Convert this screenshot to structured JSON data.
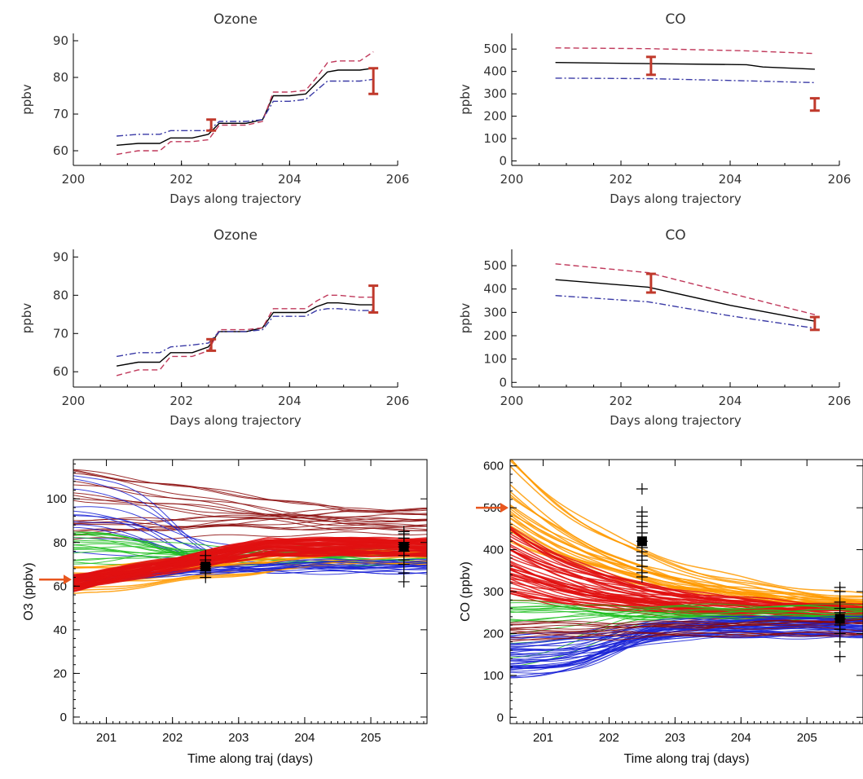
{
  "chart_data": [
    {
      "id": "p1",
      "type": "line",
      "title": "Ozone",
      "xlabel": "Days along trajectory",
      "ylabel": "ppbv",
      "xlim": [
        200,
        206
      ],
      "ylim": [
        56,
        92
      ],
      "xticks": [
        200,
        202,
        204,
        206
      ],
      "yticks": [
        60,
        70,
        80,
        90
      ],
      "series": [
        {
          "style": "solid",
          "color": "#000000",
          "x": [
            200.8,
            201.2,
            201.6,
            201.8,
            202.2,
            202.5,
            202.7,
            203.2,
            203.5,
            203.7,
            204.0,
            204.3,
            204.5,
            204.7,
            204.9,
            205.3,
            205.55
          ],
          "y": [
            61.5,
            62,
            62,
            63.5,
            63.5,
            64.5,
            67.5,
            67.5,
            68.5,
            75,
            75,
            75.5,
            78.5,
            81.5,
            82,
            82,
            82.5
          ]
        },
        {
          "style": "dashed",
          "color": "#c0395b",
          "x": [
            200.8,
            201.2,
            201.6,
            201.8,
            202.2,
            202.5,
            202.7,
            203.2,
            203.5,
            203.7,
            204.0,
            204.3,
            204.5,
            204.7,
            204.9,
            205.3,
            205.55
          ],
          "y": [
            59,
            60,
            60,
            62.5,
            62.5,
            63,
            67,
            67,
            68,
            76,
            76,
            76.5,
            80,
            84,
            84.5,
            84.5,
            87
          ]
        },
        {
          "style": "dashdot",
          "color": "#3a3aa6",
          "x": [
            200.8,
            201.2,
            201.6,
            201.8,
            202.2,
            202.5,
            202.7,
            203.2,
            203.5,
            203.7,
            204.0,
            204.3,
            204.5,
            204.7,
            204.9,
            205.3,
            205.55
          ],
          "y": [
            64,
            64.5,
            64.5,
            65.5,
            65.5,
            65.5,
            68,
            68,
            68.5,
            73.5,
            73.5,
            74,
            76.5,
            79,
            79,
            79,
            79.5
          ]
        }
      ],
      "errorbars": [
        {
          "x": 202.55,
          "y_low": 65.5,
          "y_high": 68.5
        },
        {
          "x": 205.55,
          "y_low": 75.5,
          "y_high": 82.5
        }
      ]
    },
    {
      "id": "p2",
      "type": "line",
      "title": "CO",
      "xlabel": "Days along trajectory",
      "ylabel": "ppbv",
      "xlim": [
        200,
        206
      ],
      "ylim": [
        -20,
        570
      ],
      "xticks": [
        200,
        202,
        204,
        206
      ],
      "yticks": [
        0,
        100,
        200,
        300,
        400,
        500
      ],
      "series": [
        {
          "style": "solid",
          "color": "#000000",
          "x": [
            200.8,
            202.5,
            204.3,
            204.6,
            205.55
          ],
          "y": [
            440,
            435,
            430,
            420,
            410
          ]
        },
        {
          "style": "dashed",
          "color": "#c0395b",
          "x": [
            200.8,
            202.5,
            204.3,
            205.55
          ],
          "y": [
            505,
            502,
            492,
            480
          ]
        },
        {
          "style": "dashdot",
          "color": "#3a3aa6",
          "x": [
            200.8,
            202.5,
            204.3,
            205.55
          ],
          "y": [
            370,
            368,
            358,
            350
          ]
        }
      ],
      "errorbars": [
        {
          "x": 202.55,
          "y_low": 385,
          "y_high": 465
        },
        {
          "x": 205.55,
          "y_low": 225,
          "y_high": 280
        }
      ]
    },
    {
      "id": "p3",
      "type": "line",
      "title": "Ozone",
      "xlabel": "Days along trajectory",
      "ylabel": "ppbv",
      "xlim": [
        200,
        206
      ],
      "ylim": [
        56,
        92
      ],
      "xticks": [
        200,
        202,
        204,
        206
      ],
      "yticks": [
        60,
        70,
        80,
        90
      ],
      "series": [
        {
          "style": "solid",
          "color": "#000000",
          "x": [
            200.8,
            201.2,
            201.6,
            201.8,
            202.2,
            202.5,
            202.7,
            203.2,
            203.5,
            203.7,
            204.0,
            204.3,
            204.5,
            204.7,
            204.9,
            205.3,
            205.55
          ],
          "y": [
            61.5,
            62.5,
            62.5,
            65,
            65,
            66.5,
            70.5,
            70.5,
            71.5,
            75.5,
            75.5,
            75.5,
            77,
            78,
            78,
            77.5,
            77.5
          ]
        },
        {
          "style": "dashed",
          "color": "#c0395b",
          "x": [
            200.8,
            201.2,
            201.6,
            201.8,
            202.2,
            202.5,
            202.7,
            203.2,
            203.5,
            203.7,
            204.0,
            204.3,
            204.5,
            204.7,
            204.9,
            205.3,
            205.55
          ],
          "y": [
            59,
            60.5,
            60.5,
            64,
            64,
            65.5,
            71,
            71,
            71.5,
            76.5,
            76.5,
            76.5,
            78.5,
            80,
            80,
            79.5,
            79.5
          ]
        },
        {
          "style": "dashdot",
          "color": "#3a3aa6",
          "x": [
            200.8,
            201.2,
            201.6,
            201.8,
            202.2,
            202.5,
            202.7,
            203.2,
            203.5,
            203.7,
            204.0,
            204.3,
            204.5,
            204.7,
            204.9,
            205.3,
            205.55
          ],
          "y": [
            64,
            65,
            65,
            66.5,
            67,
            67.5,
            70.5,
            70.5,
            71,
            74.5,
            74.5,
            74.5,
            76,
            76.5,
            76.5,
            76,
            76
          ]
        }
      ],
      "errorbars": [
        {
          "x": 202.55,
          "y_low": 65.5,
          "y_high": 68.5
        },
        {
          "x": 205.55,
          "y_low": 75.5,
          "y_high": 82.5
        }
      ]
    },
    {
      "id": "p4",
      "type": "line",
      "title": "CO",
      "xlabel": "Days along trajectory",
      "ylabel": "ppbv",
      "xlim": [
        200,
        206
      ],
      "ylim": [
        -20,
        570
      ],
      "xticks": [
        200,
        202,
        204,
        206
      ],
      "yticks": [
        0,
        100,
        200,
        300,
        400,
        500
      ],
      "series": [
        {
          "style": "solid",
          "color": "#000000",
          "x": [
            200.8,
            202.5,
            204.0,
            205.55
          ],
          "y": [
            440,
            408,
            330,
            262
          ]
        },
        {
          "style": "dashed",
          "color": "#c0395b",
          "x": [
            200.8,
            202.5,
            204.0,
            205.55
          ],
          "y": [
            508,
            470,
            382,
            290
          ]
        },
        {
          "style": "dashdot",
          "color": "#3a3aa6",
          "x": [
            200.8,
            202.5,
            204.0,
            205.55
          ],
          "y": [
            372,
            345,
            285,
            232
          ]
        }
      ],
      "errorbars": [
        {
          "x": 202.55,
          "y_low": 385,
          "y_high": 465
        },
        {
          "x": 205.55,
          "y_low": 225,
          "y_high": 280
        }
      ]
    },
    {
      "id": "p5",
      "type": "line",
      "xlabel": "Time along traj  (days)",
      "ylabel": "O3  (ppbv)",
      "xlim": [
        200.5,
        205.85
      ],
      "ylim": [
        -3,
        118
      ],
      "xticks": [
        201,
        202,
        203,
        204,
        205
      ],
      "yticks": [
        0,
        20,
        40,
        60,
        80,
        100
      ],
      "arrow_y": 63,
      "bundles": [
        {
          "color": "#8b0a0a",
          "start_range": [
            80,
            115
          ],
          "end_range": [
            84,
            96
          ],
          "t_end": 0.35,
          "kind": "lin",
          "lines": 20,
          "width": 1
        },
        {
          "color": "#1a22d6",
          "start_range": [
            65,
            115
          ],
          "end_range": [
            65,
            78
          ],
          "t_end": 0.45,
          "kind": "sig",
          "lines": 12,
          "width": 1
        },
        {
          "color": "#20c020",
          "start_range": [
            70,
            88
          ],
          "end_range": [
            70,
            78
          ],
          "t_end": 0.35,
          "kind": "sig",
          "lines": 18,
          "width": 1
        },
        {
          "color": "#ff9a00",
          "start_range": [
            56,
            70
          ],
          "end_range": [
            70,
            78
          ],
          "t_end": 0.35,
          "kind": "lin",
          "lines": 14,
          "width": 1.5
        },
        {
          "color": "#1a22d6",
          "start_range": [
            60,
            64
          ],
          "end_range": [
            68,
            72
          ],
          "t_end": 0.3,
          "kind": "lin",
          "lines": 10,
          "width": 1
        },
        {
          "color": "#e01010",
          "start_range": [
            58,
            66
          ],
          "end_range": [
            74,
            82
          ],
          "t_end": 0.25,
          "kind": "lin",
          "lines": 40,
          "width": 2
        }
      ],
      "observations": [
        {
          "x": 202.5,
          "y": [
            64,
            66,
            67,
            68,
            69,
            70,
            72,
            74
          ]
        },
        {
          "x": 205.5,
          "y": [
            62,
            66,
            70,
            72,
            74,
            76,
            78,
            79,
            80,
            82,
            84,
            85
          ]
        }
      ]
    },
    {
      "id": "p6",
      "type": "line",
      "xlabel": "Time along traj  (days)",
      "ylabel": "CO  (ppbv)",
      "xlim": [
        200.5,
        205.85
      ],
      "ylim": [
        -15,
        615
      ],
      "xticks": [
        201,
        202,
        203,
        204,
        205
      ],
      "yticks": [
        0,
        100,
        200,
        300,
        400,
        500,
        600
      ],
      "arrow_y": 500,
      "bundles": [
        {
          "color": "#ff9a00",
          "start_range": [
            420,
            620
          ],
          "end_range": [
            230,
            270
          ],
          "t_end": 0.4,
          "kind": "exp",
          "lines": 22,
          "width": 1.5
        },
        {
          "color": "#e01010",
          "start_range": [
            280,
            460
          ],
          "end_range": [
            220,
            260
          ],
          "t_end": 0.35,
          "kind": "exp",
          "lines": 45,
          "width": 1.5
        },
        {
          "color": "#20c020",
          "start_range": [
            100,
            280
          ],
          "end_range": [
            230,
            270
          ],
          "t_end": 0.4,
          "kind": "sig",
          "lines": 16,
          "width": 1
        },
        {
          "color": "#1a22d6",
          "start_range": [
            95,
            200
          ],
          "end_range": [
            190,
            240
          ],
          "t_end": 0.5,
          "kind": "sig",
          "lines": 40,
          "width": 1
        },
        {
          "color": "#8b0a0a",
          "start_range": [
            180,
            230
          ],
          "end_range": [
            195,
            240
          ],
          "t_end": 0.45,
          "kind": "lin",
          "lines": 12,
          "width": 1
        }
      ],
      "observations": [
        {
          "x": 202.5,
          "y": [
            335,
            345,
            360,
            375,
            385,
            395,
            405,
            420,
            440,
            455,
            465,
            480,
            490,
            545
          ]
        },
        {
          "x": 205.5,
          "y": [
            145,
            180,
            200,
            210,
            220,
            235,
            250,
            260,
            275,
            300,
            310
          ]
        }
      ]
    }
  ]
}
